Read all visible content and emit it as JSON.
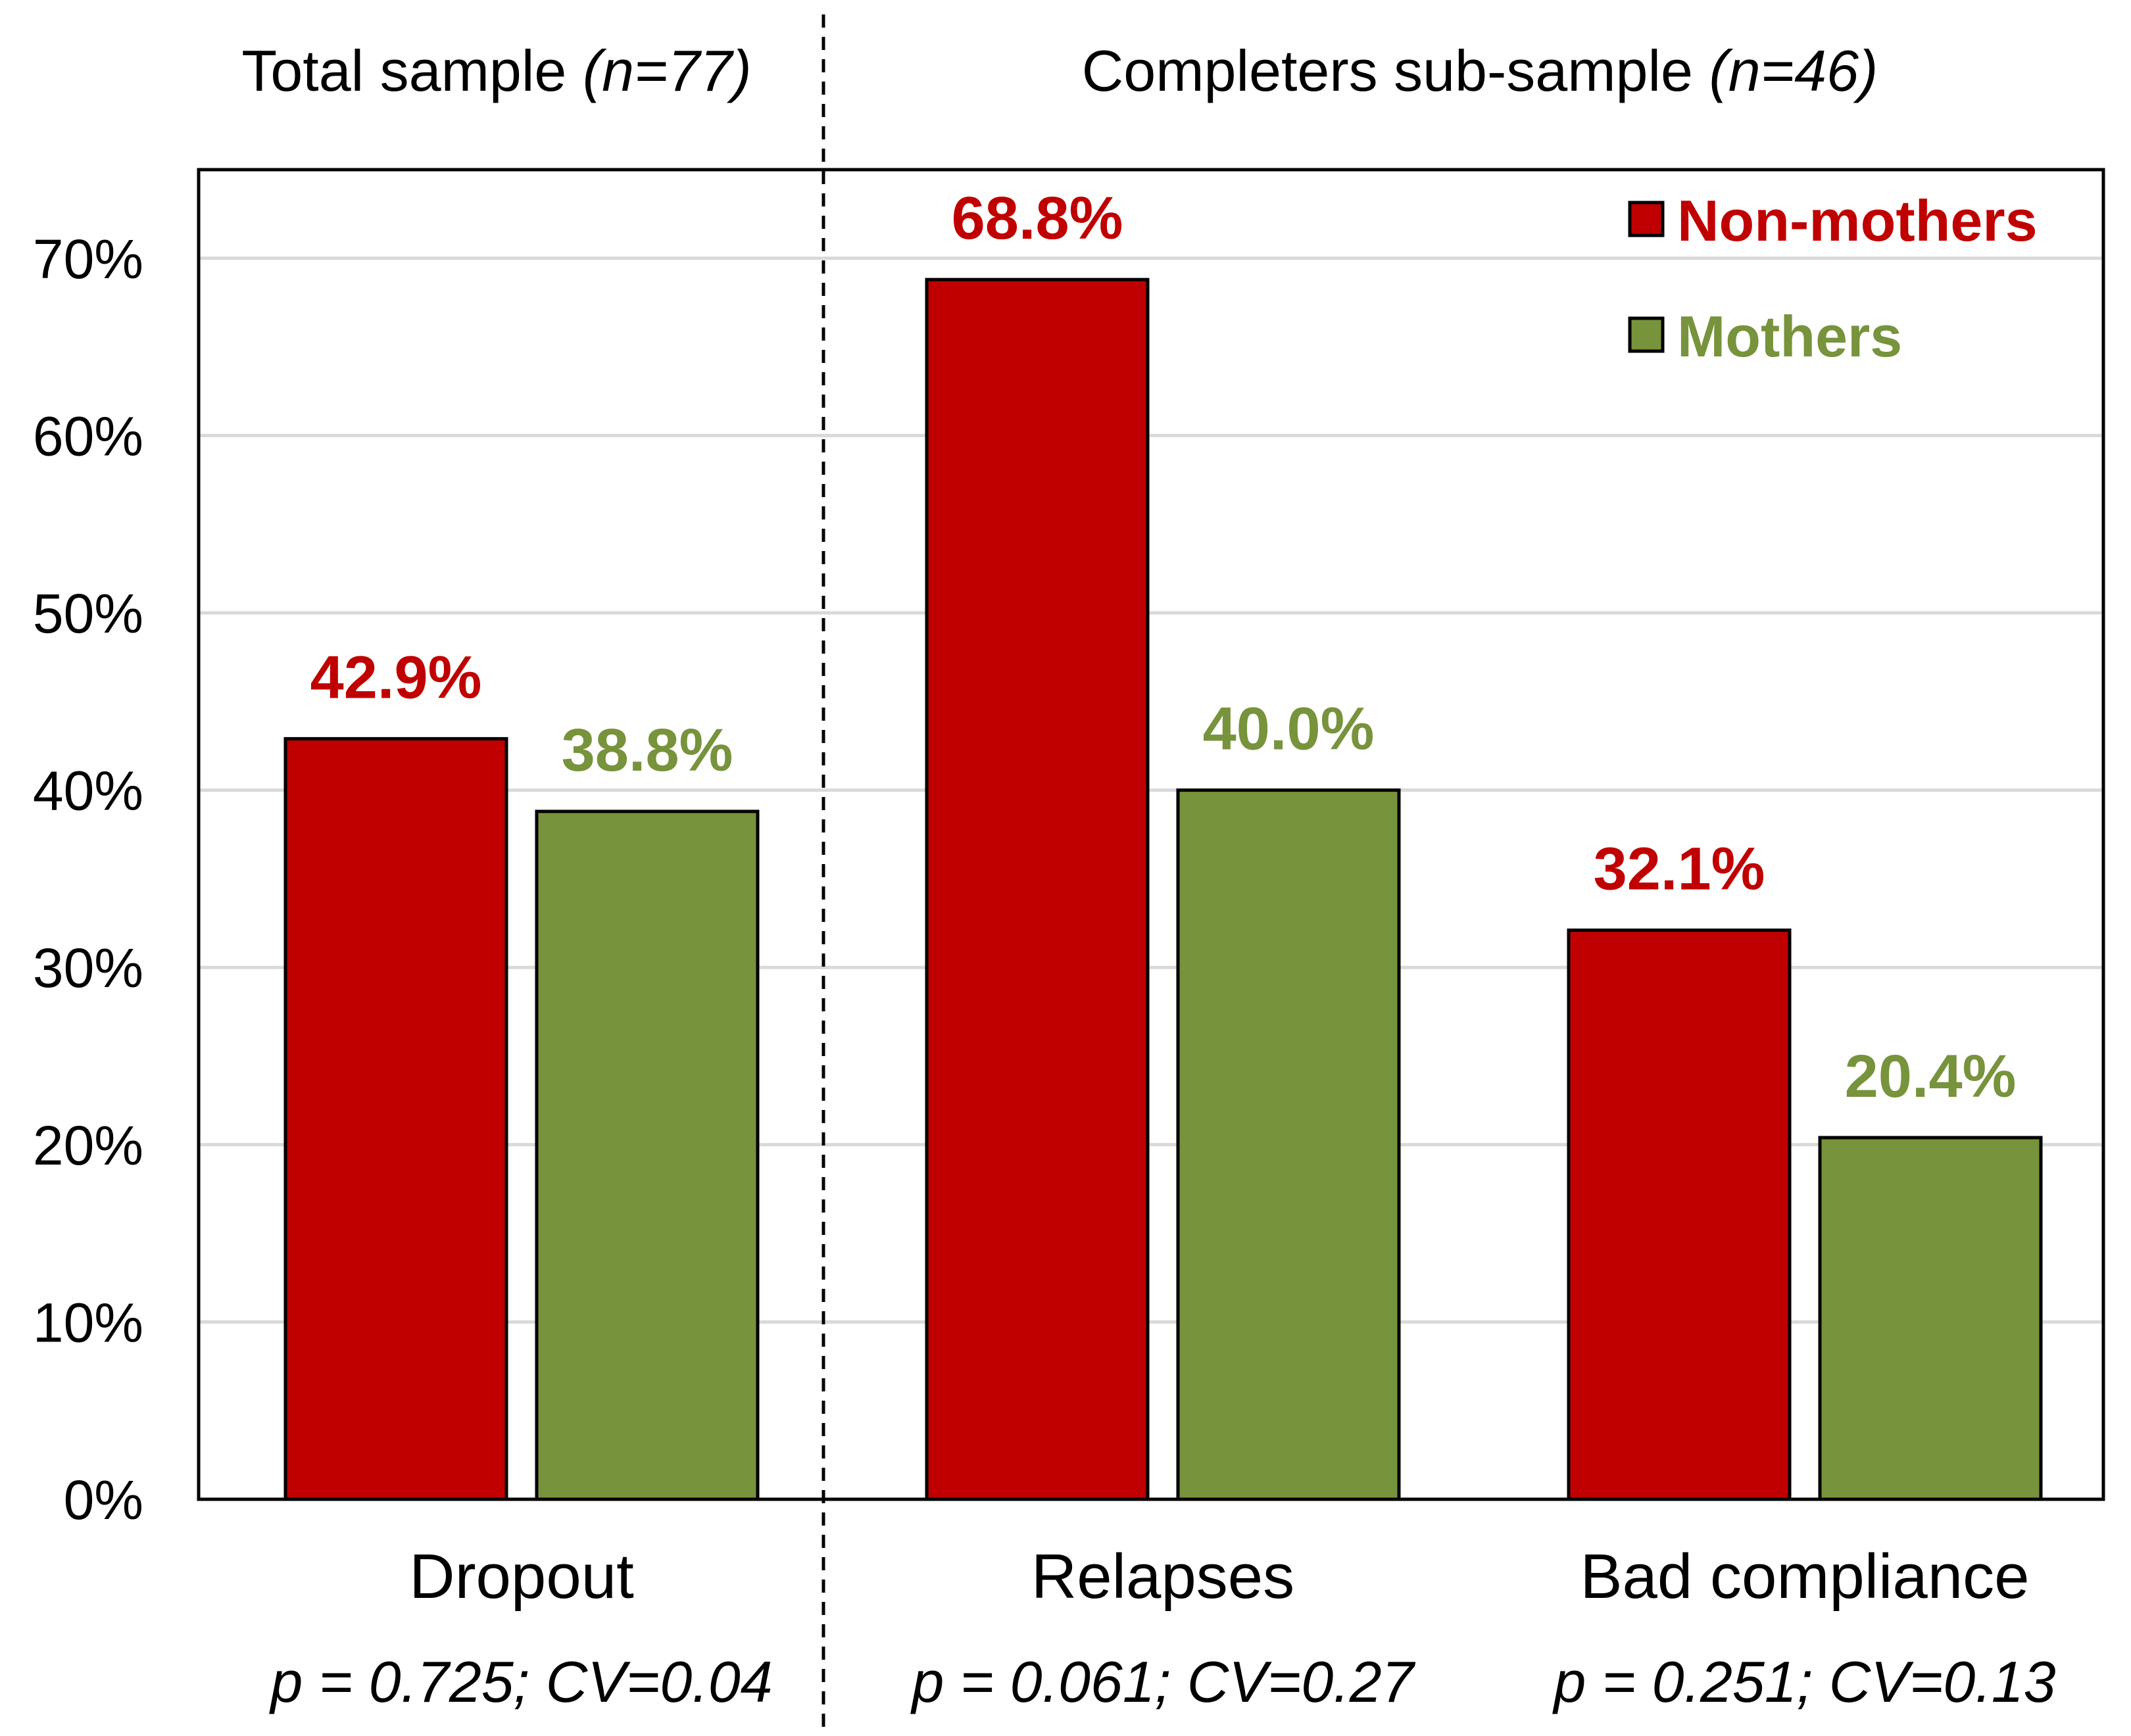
{
  "chart_data": {
    "type": "bar",
    "categories": [
      "Dropout",
      "Relapses",
      "Bad compliance"
    ],
    "series": [
      {
        "name": "Non-mothers",
        "color": "#c00000",
        "values": [
          42.9,
          68.8,
          32.1
        ],
        "labels": [
          "42.9%",
          "68.8%",
          "32.1%"
        ]
      },
      {
        "name": "Mothers",
        "color": "#77933c",
        "values": [
          38.8,
          40.0,
          20.4
        ],
        "labels": [
          "38.8%",
          "40.0%",
          "20.4%"
        ]
      }
    ],
    "ylim": [
      0,
      75
    ],
    "yticks": [
      0,
      10,
      20,
      30,
      40,
      50,
      60,
      70
    ],
    "ytick_labels": [
      "0%",
      "10%",
      "20%",
      "30%",
      "40%",
      "50%",
      "60%",
      "70%"
    ],
    "grid": true,
    "legend_position": "top-right",
    "annotations": [
      "p = 0.725; CV=0.04",
      "p = 0.061; CV=0.27",
      "p = 0.251; CV=0.13"
    ],
    "panel_headers": [
      {
        "text": "Total sample ",
        "italic": "(n=77)"
      },
      {
        "text": "Completers sub-sample ",
        "italic": "(n=46)"
      }
    ],
    "xlabel": "",
    "ylabel": ""
  }
}
